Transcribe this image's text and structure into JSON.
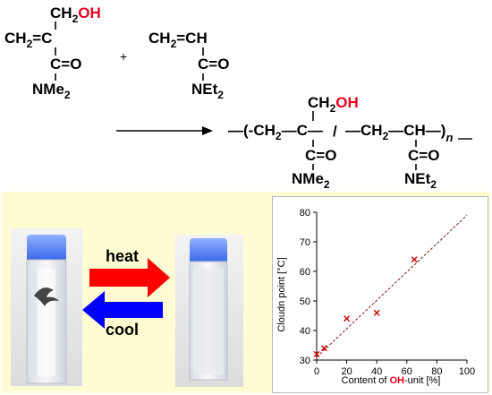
{
  "scheme": {
    "monomer_a": {
      "pendant": "CH",
      "pendant_sub": "2",
      "hydroxyl": "OH",
      "backbone": "CH",
      "backbone_sub": "2",
      "backbone_eq": "=C",
      "carbonyl": "C=O",
      "amide": "NMe",
      "amide_sub": "2"
    },
    "plus": "+",
    "monomer_b": {
      "backbone": "CH",
      "backbone_sub": "2",
      "backbone_eq": "=CH",
      "carbonyl": "C=O",
      "amide": "NEt",
      "amide_sub": "2"
    },
    "polymer": {
      "open": "—(-",
      "unit_a": "CH",
      "unit_a_sub": "2",
      "unit_a_c": "—C—",
      "slash": "/",
      "unit_b": "—CH",
      "unit_b_sub": "2",
      "unit_b_c": "—CH—)",
      "n": "n",
      "pendant": "CH",
      "pendant_sub": "2",
      "hydroxyl": "OH",
      "carbonyl_a": "C=O",
      "amide_a": "NMe",
      "amide_a_sub": "2",
      "carbonyl_b": "C=O",
      "amide_b": "NEt",
      "amide_b_sub": "2"
    }
  },
  "transition": {
    "heat_label": "heat",
    "cool_label": "cool",
    "colors": {
      "heat": "#ff0000",
      "cool": "#0000ff",
      "red_text": "#e8001c"
    }
  },
  "chart_data": {
    "type": "scatter",
    "x": [
      0,
      5,
      20,
      40,
      65
    ],
    "y": [
      32,
      34,
      44,
      46,
      64
    ],
    "marker": "x",
    "marker_color": "#cc0000",
    "trendline": {
      "style": "dashed",
      "x": [
        0,
        100
      ],
      "y": [
        31,
        79
      ]
    },
    "ylabel": "Cloudn point [°C]",
    "xlabel_parts": [
      "Content of ",
      "OH",
      "-unit [%]"
    ],
    "xlim": [
      0,
      100
    ],
    "ylim": [
      30,
      80
    ],
    "xticks": [
      "0",
      "20",
      "40",
      "60",
      "80",
      "100"
    ],
    "yticks": [
      "30",
      "40",
      "50",
      "60",
      "70",
      "80"
    ],
    "grid": false
  }
}
